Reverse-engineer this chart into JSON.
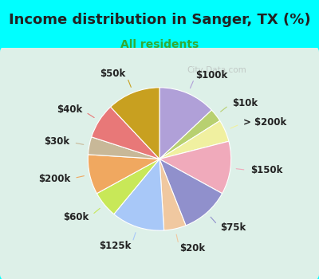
{
  "title": "Income distribution in Sanger, TX (%)",
  "subtitle": "All residents",
  "title_color": "#222222",
  "subtitle_color": "#33aa33",
  "background_color": "#00ffff",
  "chart_bg": "#ddf0e8",
  "watermark": "City-Data.com",
  "labels": [
    "$100k",
    "$10k",
    "> $200k",
    "$150k",
    "$75k",
    "$20k",
    "$125k",
    "$60k",
    "$200k",
    "$30k",
    "$40k",
    "$50k"
  ],
  "values": [
    13,
    3,
    5,
    12,
    11,
    5,
    12,
    6,
    9,
    4,
    8,
    12
  ],
  "colors": [
    "#b0a0d8",
    "#b8d070",
    "#f0f0a0",
    "#f0aabb",
    "#9090cc",
    "#f0c8a0",
    "#a8c8f8",
    "#c8e858",
    "#f0a860",
    "#c8b898",
    "#e87878",
    "#c8a020"
  ],
  "label_fontsize": 8.5,
  "title_fontsize": 13,
  "subtitle_fontsize": 10
}
